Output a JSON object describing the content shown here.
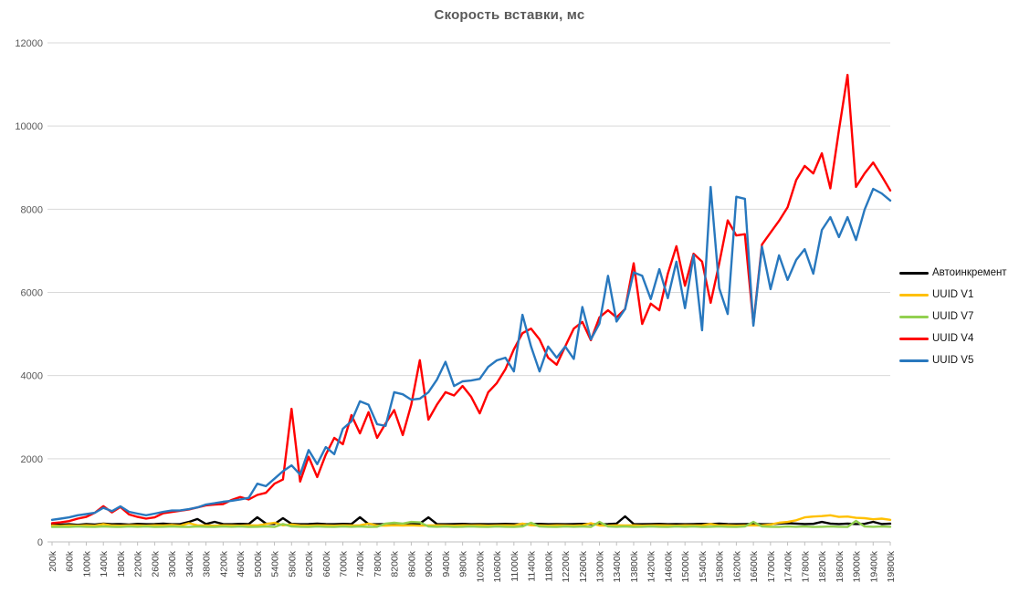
{
  "chart_data": {
    "type": "line",
    "title": "Скорость вставки, мс",
    "ylabel": "",
    "xlabel": "",
    "ylim": [
      0,
      12000
    ],
    "y_ticks": [
      0,
      2000,
      4000,
      6000,
      8000,
      10000,
      12000
    ],
    "x_tick_labels": [
      "200k",
      "600k",
      "1000k",
      "1400k",
      "1800k",
      "2200k",
      "2600k",
      "3000k",
      "3400k",
      "3800k",
      "4200k",
      "4600k",
      "5000k",
      "5400k",
      "5800k",
      "6200k",
      "6600k",
      "7000k",
      "7400k",
      "7800k",
      "8200k",
      "8600k",
      "9000k",
      "9400k",
      "9800k",
      "10200k",
      "10600k",
      "11000k",
      "11400k",
      "11800k",
      "12200k",
      "12600k",
      "13000k",
      "13400k",
      "13800k",
      "14200k",
      "14600k",
      "15000k",
      "15400k",
      "15800k",
      "16200k",
      "16600k",
      "17000k",
      "17400k",
      "17800k",
      "18200k",
      "18600k",
      "19000k",
      "19400k",
      "19800k"
    ],
    "x_start_k": 200,
    "x_step_k": 200,
    "x_count": 99,
    "grid": "horizontal",
    "legend_position": "right",
    "colors": {
      "grid": "#d9d9d9",
      "axis": "#bfbfbf",
      "tick_text": "#595959",
      "title_text": "#595959"
    },
    "series": [
      {
        "name": "Автоинкремент",
        "color": "#000000",
        "values": [
          420,
          415,
          425,
          410,
          430,
          420,
          440,
          425,
          430,
          420,
          435,
          425,
          430,
          440,
          425,
          430,
          480,
          550,
          430,
          483,
          430,
          425,
          435,
          430,
          592,
          440,
          430,
          570,
          435,
          425,
          430,
          440,
          430,
          425,
          435,
          430,
          592,
          430,
          425,
          430,
          435,
          425,
          430,
          440,
          590,
          430,
          425,
          430,
          435,
          425,
          430,
          425,
          430,
          435,
          430,
          425,
          430,
          435,
          425,
          430,
          425,
          430,
          435,
          430,
          425,
          430,
          440,
          614,
          430,
          425,
          430,
          435,
          425,
          430,
          425,
          430,
          435,
          430,
          440,
          430,
          425,
          430,
          435,
          425,
          430,
          440,
          450,
          440,
          430,
          435,
          480,
          440,
          430,
          440,
          430,
          435,
          483,
          430,
          440
        ]
      },
      {
        "name": "UUID V1",
        "color": "#ffc000",
        "values": [
          390,
          385,
          395,
          390,
          400,
          390,
          430,
          395,
          390,
          400,
          395,
          390,
          400,
          395,
          405,
          390,
          450,
          400,
          395,
          390,
          400,
          395,
          390,
          400,
          395,
          430,
          460,
          400,
          420,
          395,
          390,
          400,
          395,
          390,
          400,
          395,
          400,
          440,
          395,
          390,
          400,
          395,
          400,
          390,
          395,
          400,
          395,
          390,
          400,
          395,
          400,
          390,
          395,
          400,
          395,
          440,
          400,
          395,
          390,
          400,
          395,
          390,
          400,
          450,
          395,
          390,
          400,
          395,
          400,
          390,
          395,
          400,
          395,
          390,
          400,
          395,
          400,
          430,
          395,
          400,
          390,
          395,
          400,
          395,
          420,
          460,
          480,
          520,
          590,
          610,
          620,
          640,
          600,
          610,
          580,
          570,
          545,
          560,
          530
        ]
      },
      {
        "name": "UUID V7",
        "color": "#92d050",
        "values": [
          360,
          365,
          360,
          370,
          365,
          360,
          370,
          365,
          360,
          370,
          365,
          370,
          360,
          365,
          370,
          365,
          360,
          370,
          365,
          360,
          370,
          365,
          370,
          360,
          365,
          370,
          360,
          430,
          370,
          365,
          360,
          370,
          365,
          360,
          370,
          365,
          370,
          360,
          365,
          440,
          460,
          440,
          480,
          470,
          370,
          365,
          370,
          360,
          365,
          370,
          365,
          360,
          370,
          365,
          360,
          370,
          460,
          370,
          365,
          360,
          370,
          365,
          370,
          360,
          483,
          370,
          365,
          370,
          360,
          365,
          370,
          365,
          360,
          370,
          365,
          370,
          360,
          365,
          370,
          365,
          360,
          370,
          483,
          370,
          365,
          360,
          370,
          365,
          370,
          360,
          365,
          370,
          365,
          360,
          505,
          370,
          365,
          370,
          365
        ]
      },
      {
        "name": "UUID V4",
        "color": "#ff0000",
        "values": [
          450,
          470,
          500,
          560,
          600,
          700,
          860,
          710,
          840,
          660,
          600,
          560,
          590,
          690,
          720,
          750,
          780,
          830,
          880,
          900,
          910,
          1010,
          1080,
          1020,
          1130,
          1180,
          1400,
          1500,
          3200,
          1450,
          2050,
          1560,
          2100,
          2500,
          2350,
          3050,
          2610,
          3120,
          2500,
          2850,
          3170,
          2570,
          3300,
          4370,
          2940,
          3300,
          3600,
          3520,
          3750,
          3490,
          3090,
          3600,
          3820,
          4150,
          4630,
          5020,
          5130,
          4870,
          4430,
          4260,
          4700,
          5130,
          5290,
          4850,
          5400,
          5570,
          5400,
          5600,
          6700,
          5240,
          5730,
          5570,
          6450,
          7110,
          6160,
          6930,
          6740,
          5750,
          6700,
          7730,
          7370,
          7400,
          5240,
          7150,
          7440,
          7720,
          8050,
          8700,
          9040,
          8860,
          9345,
          8500,
          9900,
          11230,
          8535,
          8860,
          9125,
          8800,
          8450
        ]
      },
      {
        "name": "UUID V5",
        "color": "#2878be",
        "values": [
          530,
          560,
          590,
          640,
          670,
          700,
          820,
          740,
          856,
          724,
          680,
          640,
          680,
          724,
          755,
          760,
          790,
          830,
          900,
          930,
          965,
          990,
          1020,
          1060,
          1400,
          1340,
          1520,
          1700,
          1840,
          1620,
          2210,
          1870,
          2280,
          2110,
          2720,
          2900,
          3380,
          3300,
          2830,
          2790,
          3600,
          3550,
          3420,
          3445,
          3600,
          3900,
          4330,
          3750,
          3860,
          3880,
          3920,
          4210,
          4365,
          4430,
          4100,
          5460,
          4700,
          4100,
          4700,
          4430,
          4700,
          4400,
          5650,
          4870,
          5250,
          6400,
          5300,
          5600,
          6480,
          6400,
          5840,
          6560,
          5860,
          6740,
          5620,
          6900,
          5090,
          8535,
          6100,
          5480,
          8300,
          8250,
          5200,
          7100,
          6080,
          6890,
          6300,
          6780,
          7040,
          6450,
          7500,
          7810,
          7330,
          7810,
          7260,
          7990,
          8490,
          8380,
          8210
        ]
      }
    ]
  }
}
